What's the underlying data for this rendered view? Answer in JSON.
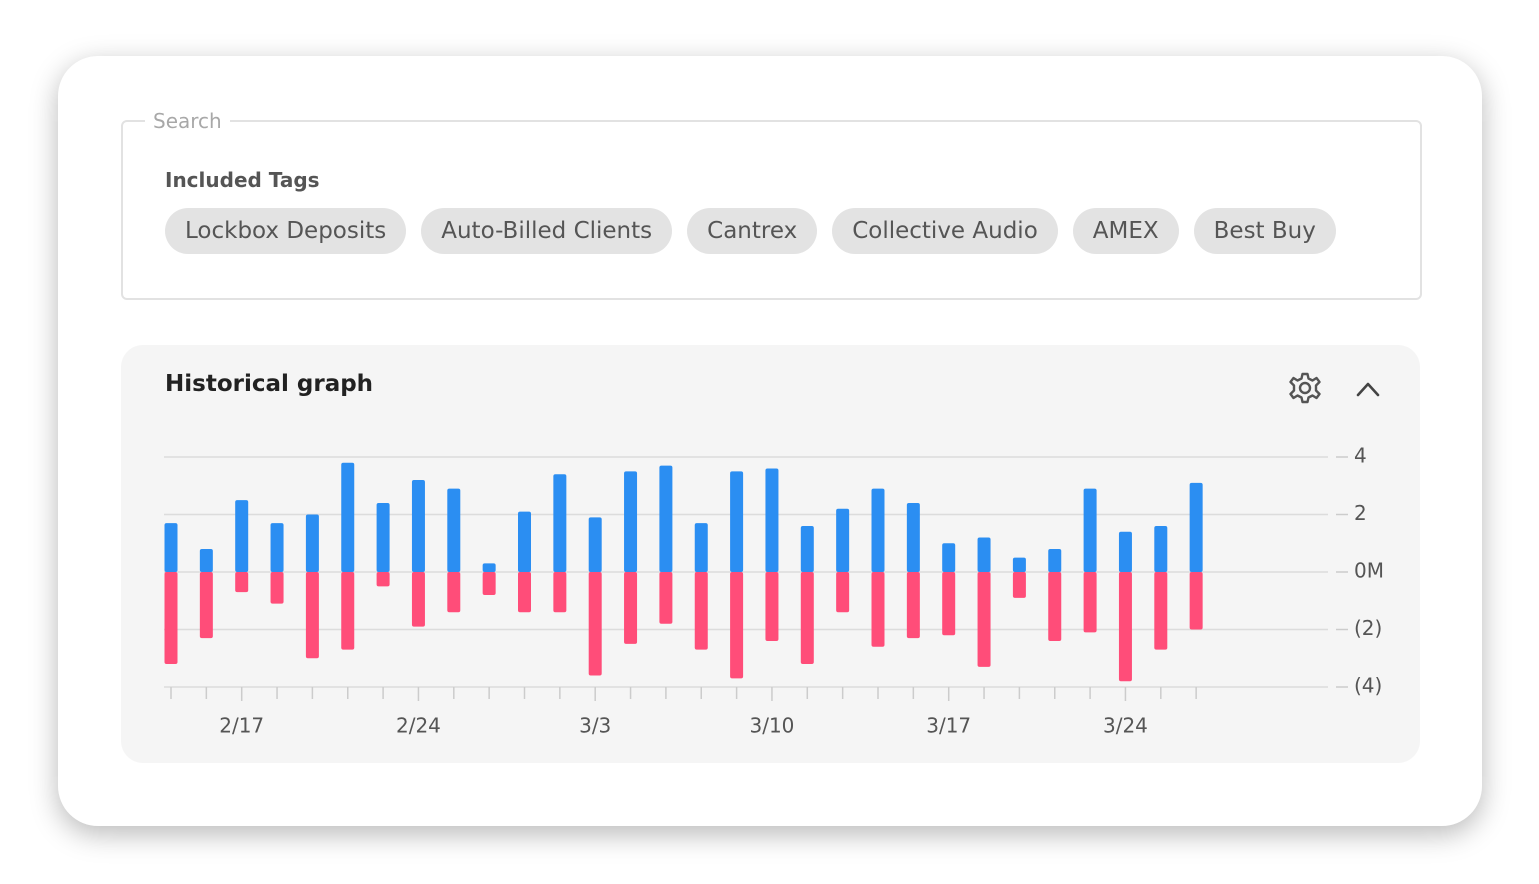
{
  "search": {
    "label": "Search",
    "included_tags_label": "Included Tags",
    "tags": [
      "Lockbox Deposits",
      "Auto-Billed Clients",
      "Cantrex",
      "Collective Audio",
      "AMEX",
      "Best Buy"
    ]
  },
  "graph": {
    "title": "Historical graph"
  },
  "chart_data": {
    "type": "bar",
    "categories": [
      null,
      null,
      "2/17",
      null,
      null,
      null,
      null,
      "2/24",
      null,
      null,
      null,
      null,
      "3/3",
      null,
      null,
      null,
      null,
      "3/10",
      null,
      null,
      null,
      null,
      "3/17",
      null,
      null,
      null,
      null,
      "3/24",
      null,
      null
    ],
    "series": [
      {
        "color": "#2b8ef2",
        "values": [
          1.7,
          0.8,
          2.5,
          1.7,
          2.0,
          3.8,
          2.4,
          3.2,
          2.9,
          0.3,
          2.1,
          3.4,
          1.9,
          3.5,
          3.7,
          1.7,
          3.5,
          3.6,
          1.6,
          2.2,
          2.9,
          2.4,
          1.0,
          1.2,
          0.5,
          0.8,
          2.9,
          1.4,
          1.6,
          3.1
        ]
      },
      {
        "color": "#ff4d79",
        "values": [
          -3.2,
          -2.3,
          -0.7,
          -1.1,
          -3.0,
          -2.7,
          -0.5,
          -1.9,
          -1.4,
          -0.8,
          -1.4,
          -1.4,
          -3.6,
          -2.5,
          -1.8,
          -2.7,
          -3.7,
          -2.4,
          -3.2,
          -1.4,
          -2.6,
          -2.3,
          -2.2,
          -3.3,
          -0.9,
          -2.4,
          -2.1,
          -3.8,
          -2.7,
          -2.0
        ]
      }
    ],
    "ylim": [
      -4,
      4
    ],
    "yticks": [
      4,
      2,
      {
        "value": 0,
        "label": "0M"
      },
      {
        "value": -2,
        "label": "(2)"
      },
      {
        "value": -4,
        "label": "(4)"
      }
    ],
    "grid": true
  }
}
